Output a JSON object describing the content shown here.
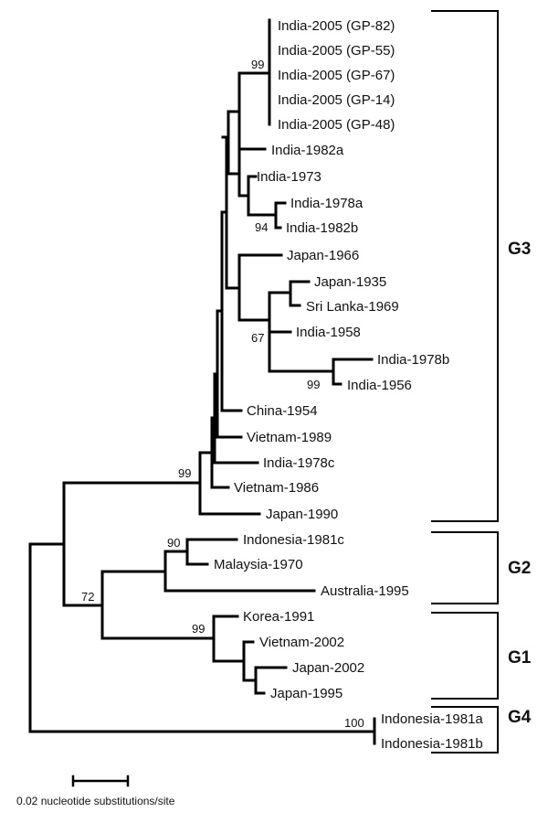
{
  "taxa": [
    "India-2005 (GP-82)",
    "India-2005 (GP-55)",
    "India-2005 (GP-67)",
    "India-2005 (GP-14)",
    "India-2005 (GP-48)",
    "India-1982a",
    "India-1973",
    "India-1978a",
    "India-1982b",
    "Japan-1966",
    "Japan-1935",
    "Sri Lanka-1969",
    "India-1958",
    "India-1978b",
    "India-1956",
    "China-1954",
    "Vietnam-1989",
    "India-1978c",
    "Vietnam-1986",
    "Japan-1990",
    "Indonesia-1981c",
    "Malaysia-1970",
    "Australia-1995",
    "Korea-1991",
    "Vietnam-2002",
    "Japan-2002",
    "Japan-1995",
    "Indonesia-1981a",
    "Indonesia-1981b"
  ],
  "bootstrap": [
    "99",
    "94",
    "67",
    "99",
    "99",
    "90",
    "72",
    "99",
    "100"
  ],
  "groups": [
    "G3",
    "G2",
    "G1",
    "G4"
  ],
  "scale": {
    "label": "0.02 nucleotide substitutions/site",
    "value": 0.02
  }
}
